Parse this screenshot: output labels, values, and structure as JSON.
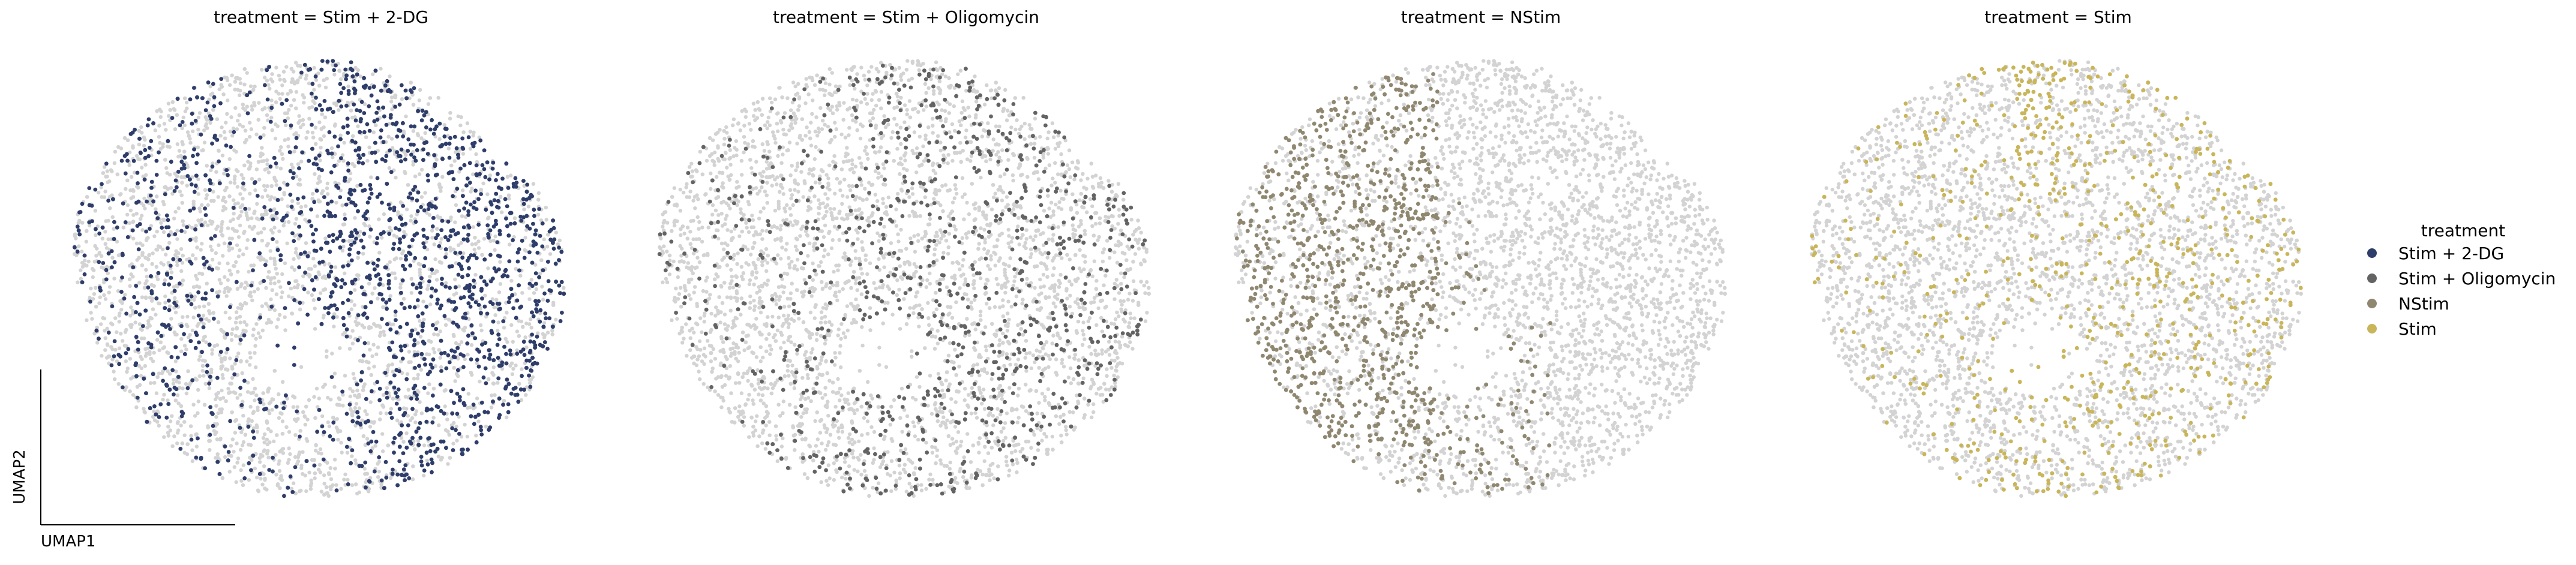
{
  "chart_data": {
    "type": "scatter",
    "xlabel": "UMAP1",
    "ylabel": "UMAP2",
    "background_color": "#d3d3d3",
    "legend": {
      "title": "treatment",
      "placement": "right",
      "items": [
        {
          "label": "Stim + 2-DG",
          "color": "#2e3d6a"
        },
        {
          "label": "Stim + Oligomycin",
          "color": "#636363"
        },
        {
          "label": "NStim",
          "color": "#8f8770"
        },
        {
          "label": "Stim",
          "color": "#c9b55a"
        }
      ]
    },
    "panels": [
      {
        "title": "treatment = Stim + 2-DG",
        "highlight": "Stim + 2-DG",
        "color": "#2e3d6a"
      },
      {
        "title": "treatment = Stim + Oligomycin",
        "highlight": "Stim + Oligomycin",
        "color": "#636363"
      },
      {
        "title": "treatment = NStim",
        "highlight": "NStim",
        "color": "#8f8770"
      },
      {
        "title": "treatment = Stim",
        "highlight": "Stim",
        "color": "#c9b55a"
      }
    ],
    "grid": false
  }
}
